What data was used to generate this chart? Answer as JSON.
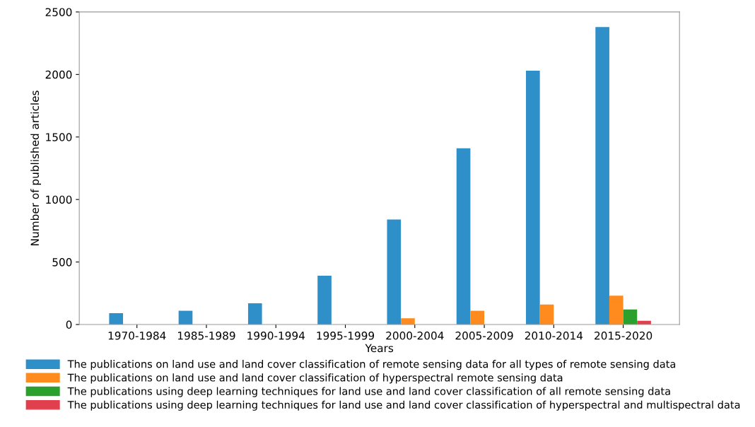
{
  "chart_data": {
    "type": "bar",
    "xlabel": "Years",
    "ylabel": "Number of published articles",
    "categories": [
      "1970-1984",
      "1985-1989",
      "1990-1994",
      "1995-1999",
      "2000-2004",
      "2005-2009",
      "2010-2014",
      "2015-2020"
    ],
    "series": [
      {
        "name": "The publications on land use and land cover classification of remote sensing data for all types of remote sensing data",
        "color": "#2e8fc9",
        "values": [
          90,
          110,
          170,
          390,
          840,
          1410,
          2030,
          2380
        ]
      },
      {
        "name": "The publications on land use and land cover classification of hyperspectral remote sensing data",
        "color": "#ff8b1f",
        "values": [
          0,
          0,
          0,
          0,
          50,
          110,
          160,
          230
        ]
      },
      {
        "name": "The publications using deep learning techniques for land use and land cover classification of all remote sensing data",
        "color": "#2ca02c",
        "values": [
          0,
          0,
          0,
          0,
          0,
          0,
          0,
          120
        ]
      },
      {
        "name": "The publications using deep learning techniques for land use and land cover classification of hyperspectral and multispectral data",
        "color": "#e0404e",
        "values": [
          0,
          0,
          0,
          0,
          0,
          0,
          0,
          30
        ]
      }
    ],
    "ylim": [
      0,
      2500
    ],
    "yticks": [
      0,
      500,
      1000,
      1500,
      2000,
      2500
    ],
    "grid": false,
    "legend": "bottom"
  }
}
